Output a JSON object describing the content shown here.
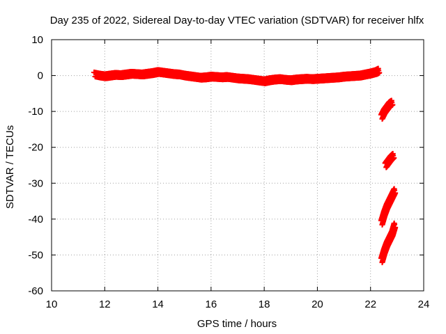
{
  "chart_data": {
    "type": "scatter",
    "title": "Day 235 of 2022, Sidereal Day-to-day VTEC variation (SDTVAR) for receiver hlfx",
    "xlabel": "GPS time / hours",
    "ylabel": "SDTVAR / TECUs",
    "xlim": [
      10,
      24
    ],
    "ylim": [
      -60,
      10
    ],
    "xticks": [
      10,
      12,
      14,
      16,
      18,
      20,
      22,
      24
    ],
    "yticks": [
      10,
      0,
      -10,
      -20,
      -30,
      -40,
      -50,
      -60
    ],
    "grid": true,
    "marker": "plus",
    "color": "#ff0000",
    "series": [
      {
        "x": [
          11.6,
          11.8,
          12.0,
          12.2,
          12.4,
          12.6,
          12.8,
          13.0,
          13.2,
          13.4,
          13.6,
          13.8,
          14.0,
          14.2,
          14.4,
          14.6,
          14.8,
          15.0,
          15.2,
          15.4,
          15.6,
          15.8,
          16.0,
          16.2,
          16.4,
          16.6,
          16.8,
          17.0,
          17.2,
          17.4,
          17.6,
          17.8,
          18.0,
          18.2,
          18.4,
          18.6,
          18.8,
          19.0,
          19.2,
          19.4,
          19.6,
          19.8,
          20.0,
          20.2,
          20.4,
          20.6,
          20.8,
          21.0,
          21.2,
          21.4,
          21.6,
          21.8,
          22.0,
          22.2,
          22.3
        ],
        "y": [
          0.3,
          0.0,
          -0.2,
          0.0,
          0.2,
          0.1,
          0.3,
          0.5,
          0.4,
          0.3,
          0.5,
          0.7,
          1.0,
          0.8,
          0.6,
          0.4,
          0.3,
          0.0,
          -0.2,
          -0.4,
          -0.6,
          -0.5,
          -0.3,
          -0.4,
          -0.5,
          -0.4,
          -0.6,
          -0.8,
          -0.9,
          -1.0,
          -1.2,
          -1.4,
          -1.6,
          -1.3,
          -1.1,
          -1.0,
          -1.2,
          -1.3,
          -1.1,
          -1.0,
          -0.9,
          -1.0,
          -0.9,
          -0.8,
          -0.7,
          -0.6,
          -0.5,
          -0.3,
          -0.2,
          -0.1,
          0.0,
          0.3,
          0.6,
          1.0,
          1.4
        ]
      },
      {
        "x": [
          22.4,
          22.5,
          22.6,
          22.7,
          22.8
        ],
        "y": [
          -11.5,
          -10.0,
          -9.0,
          -8.0,
          -7.5
        ]
      },
      {
        "x": [
          22.55,
          22.65,
          22.75,
          22.85
        ],
        "y": [
          -25.0,
          -24.0,
          -23.0,
          -22.3
        ]
      },
      {
        "x": [
          22.4,
          22.5,
          22.6,
          22.7,
          22.8,
          22.9
        ],
        "y": [
          -41.0,
          -38.5,
          -36.5,
          -35.0,
          -33.5,
          -32.0
        ]
      },
      {
        "x": [
          22.4,
          22.5,
          22.6,
          22.7,
          22.8,
          22.9
        ],
        "y": [
          -51.5,
          -49.0,
          -47.0,
          -45.5,
          -44.0,
          -41.5
        ]
      }
    ]
  }
}
